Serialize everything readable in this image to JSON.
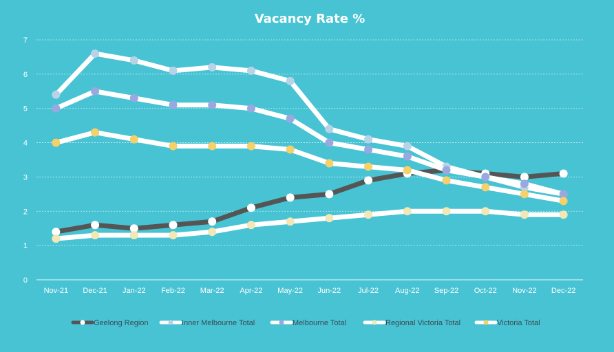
{
  "chart_data": {
    "type": "line",
    "title": "Vacancy Rate %",
    "xlabel": "",
    "ylabel": "",
    "ylim": [
      0,
      7
    ],
    "yticks": [
      0,
      1,
      2,
      3,
      4,
      5,
      6,
      7
    ],
    "grid": true,
    "legend_position": "bottom",
    "categories": [
      "Nov-21",
      "Dec-21",
      "Jan-22",
      "Feb-22",
      "Mar-22",
      "Apr-22",
      "May-22",
      "Jun-22",
      "Jul-22",
      "Aug-22",
      "Sep-22",
      "Oct-22",
      "Nov-22",
      "Dec-22"
    ],
    "series": [
      {
        "name": "Geelong Region",
        "line_color": "#555555",
        "marker_color": "#ffffff",
        "values": [
          1.4,
          1.6,
          1.5,
          1.6,
          1.7,
          2.1,
          2.4,
          2.5,
          2.9,
          3.1,
          3.2,
          3.1,
          3.0,
          3.1
        ]
      },
      {
        "name": "Inner Melbourne Total",
        "line_color": "#ffffff",
        "marker_color": "#b7d3e8",
        "values": [
          5.4,
          6.6,
          6.4,
          6.1,
          6.2,
          6.1,
          5.8,
          4.4,
          4.1,
          3.9,
          3.3,
          3.0,
          2.7,
          2.5
        ]
      },
      {
        "name": "Melbourne Total",
        "line_color": "#ffffff",
        "marker_color": "#9aa8e0",
        "values": [
          5.0,
          5.5,
          5.3,
          5.1,
          5.1,
          5.0,
          4.7,
          4.0,
          3.8,
          3.6,
          3.2,
          3.0,
          2.8,
          2.5
        ]
      },
      {
        "name": "Regional Victoria Total",
        "line_color": "#ffffff",
        "marker_color": "#f3e8b5",
        "values": [
          1.2,
          1.3,
          1.3,
          1.3,
          1.4,
          1.6,
          1.7,
          1.8,
          1.9,
          2.0,
          2.0,
          2.0,
          1.9,
          1.9
        ]
      },
      {
        "name": "Victoria Total",
        "line_color": "#ffffff",
        "marker_color": "#f6d068",
        "values": [
          4.0,
          4.3,
          4.1,
          3.9,
          3.9,
          3.9,
          3.8,
          3.4,
          3.3,
          3.2,
          2.9,
          2.7,
          2.5,
          2.3
        ]
      }
    ]
  }
}
